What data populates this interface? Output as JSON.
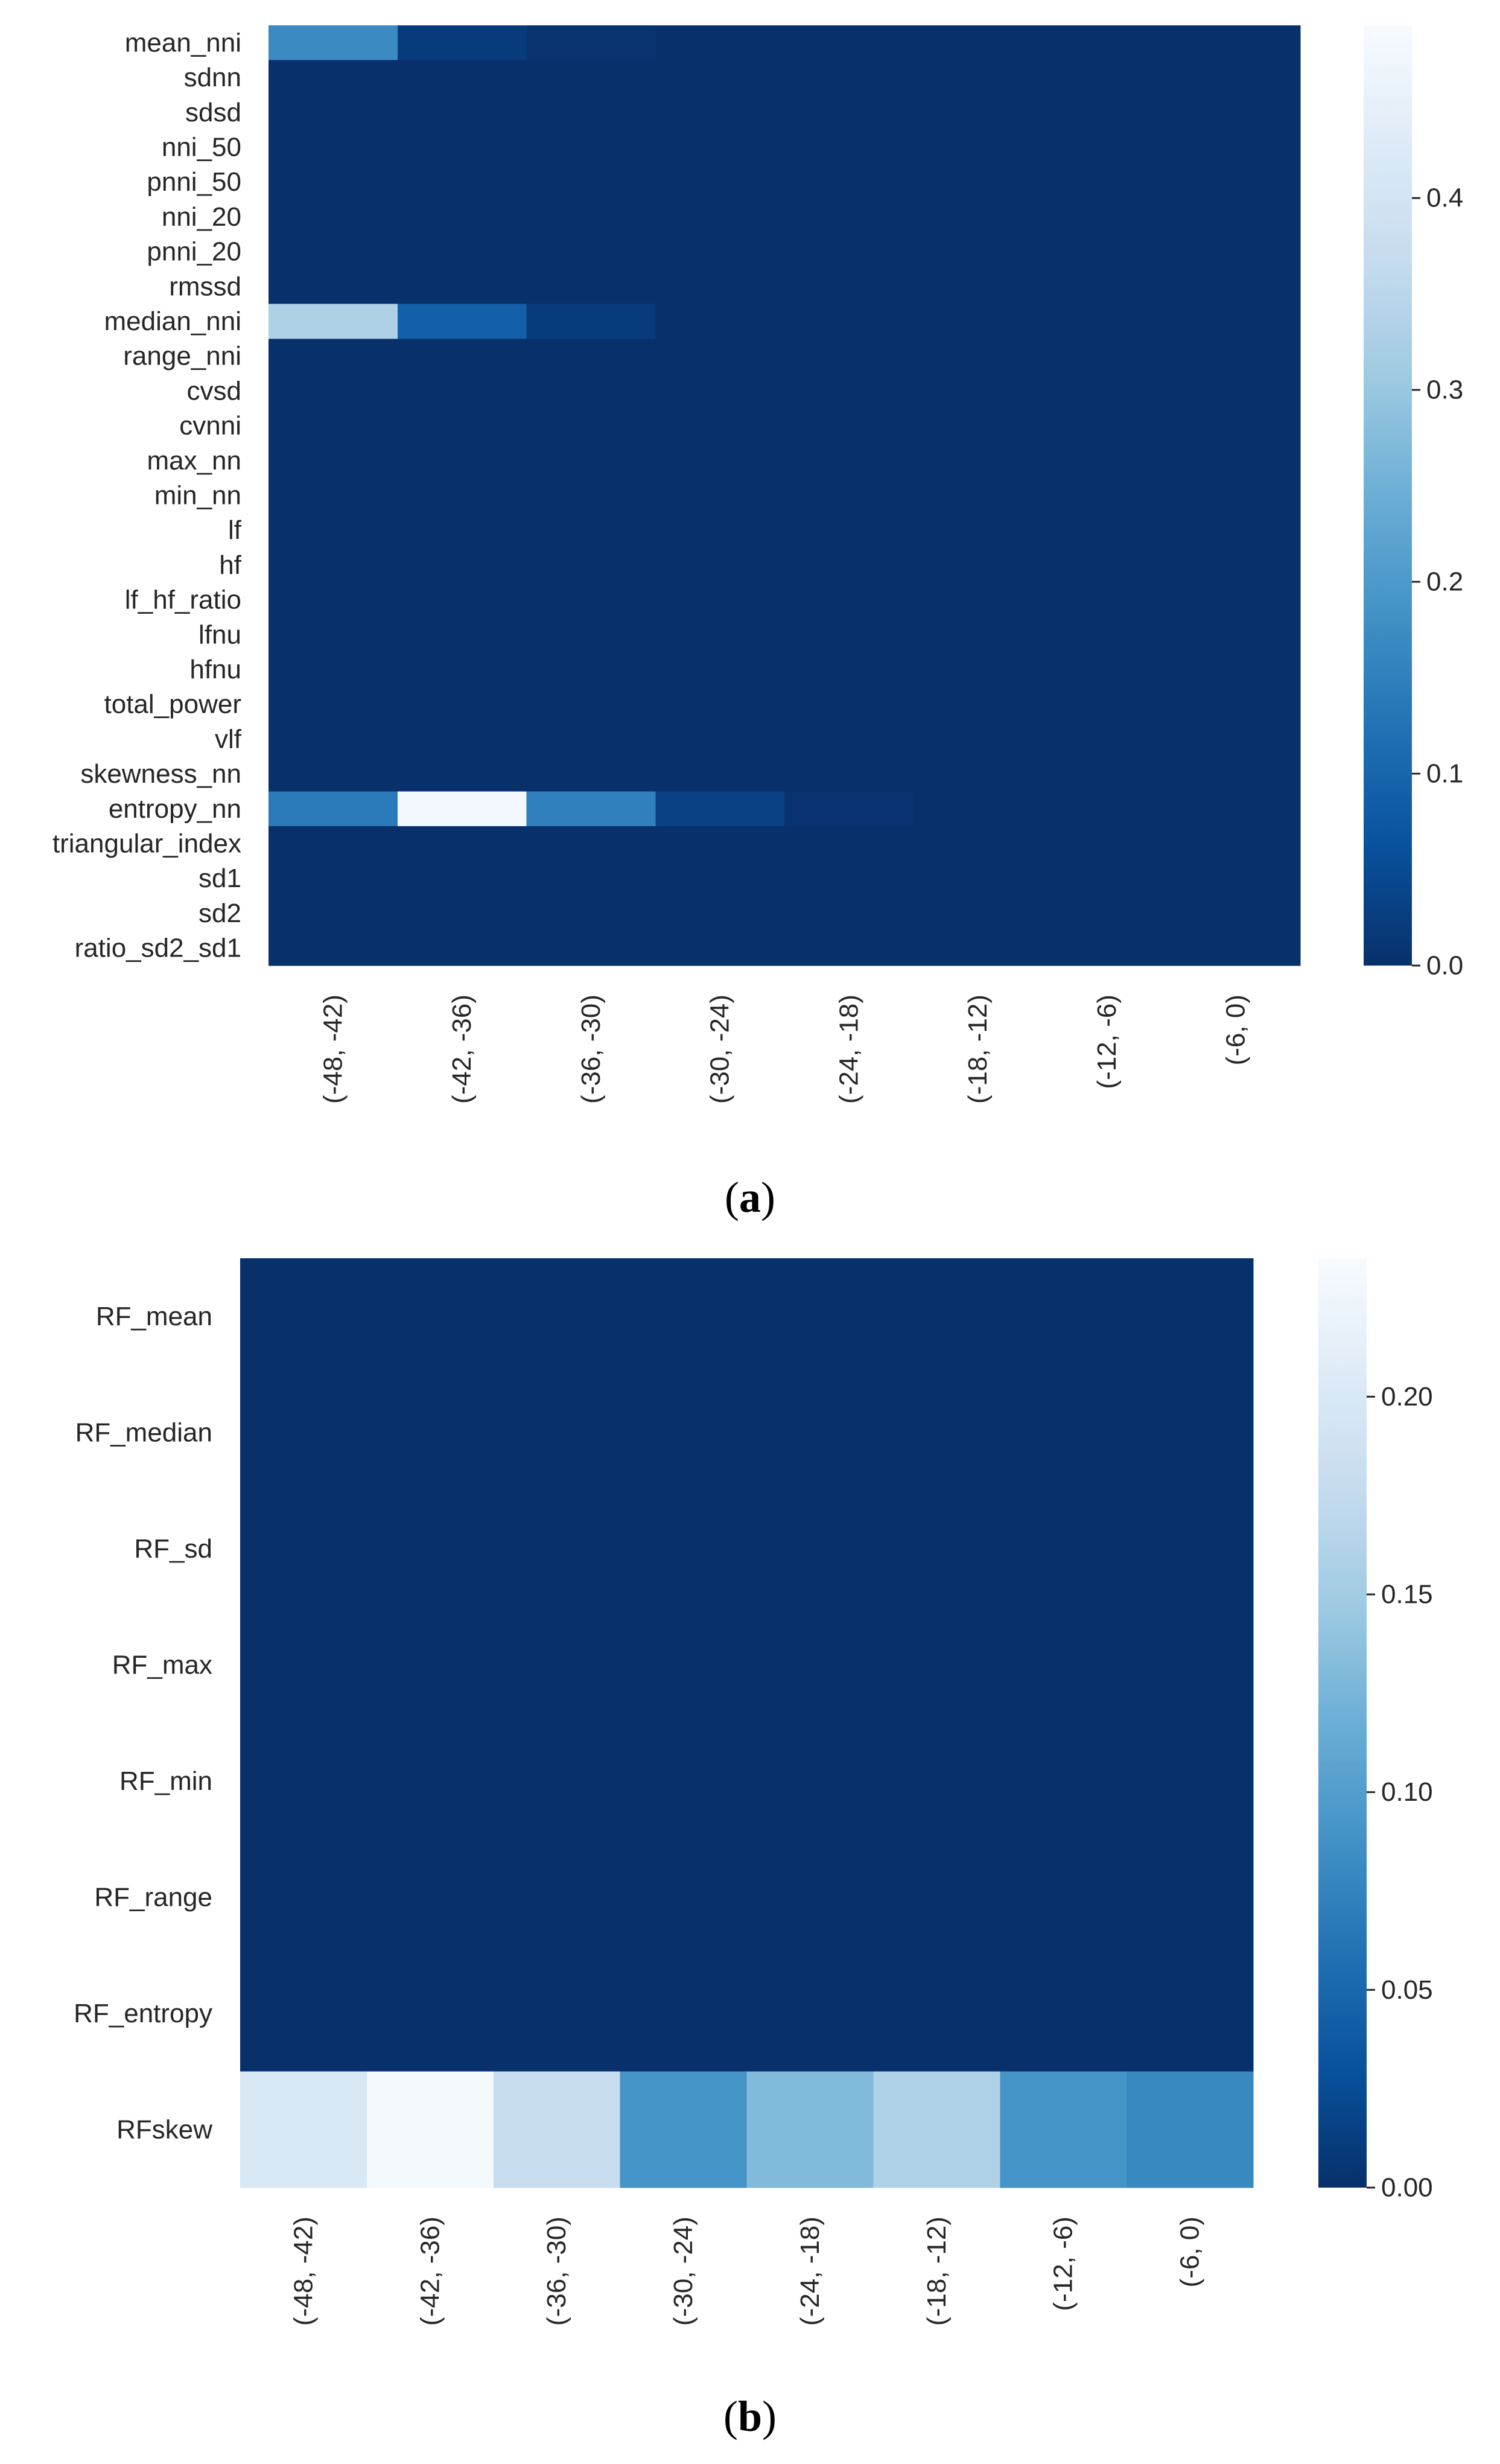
{
  "chart_data": [
    {
      "type": "heatmap",
      "panel_label": "a",
      "colormap": "Blues_r",
      "color_range": [
        0.0,
        0.49
      ],
      "rows": [
        "mean_nni",
        "sdnn",
        "sdsd",
        "nni_50",
        "pnni_50",
        "nni_20",
        "pnni_20",
        "rmssd",
        "median_nni",
        "range_nni",
        "cvsd",
        "cvnni",
        "max_nn",
        "min_nn",
        "lf",
        "hf",
        "lf_hf_ratio",
        "lfnu",
        "hfnu",
        "total_power",
        "vlf",
        "skewness_nn",
        "entropy_nn",
        "triangular_index",
        "sd1",
        "sd2",
        "ratio_sd2_sd1"
      ],
      "columns": [
        "(-48, -42)",
        "(-42, -36)",
        "(-36, -30)",
        "(-30, -24)",
        "(-24, -18)",
        "(-18, -12)",
        "(-12, -6)",
        "(-6, 0)"
      ],
      "values": [
        [
          0.17,
          0.02,
          0.005,
          0,
          0,
          0,
          0,
          0
        ],
        [
          0,
          0,
          0,
          0,
          0,
          0,
          0,
          0
        ],
        [
          0,
          0,
          0,
          0,
          0,
          0,
          0,
          0
        ],
        [
          0,
          0,
          0,
          0,
          0,
          0,
          0,
          0
        ],
        [
          0,
          0,
          0,
          0,
          0,
          0,
          0,
          0
        ],
        [
          0,
          0,
          0,
          0,
          0,
          0,
          0,
          0
        ],
        [
          0,
          0,
          0,
          0,
          0,
          0,
          0,
          0
        ],
        [
          0,
          0,
          0,
          0,
          0,
          0,
          0,
          0
        ],
        [
          0.33,
          0.09,
          0.02,
          0,
          0,
          0,
          0,
          0
        ],
        [
          0,
          0,
          0,
          0,
          0,
          0,
          0,
          0
        ],
        [
          0,
          0,
          0,
          0,
          0,
          0,
          0,
          0
        ],
        [
          0,
          0,
          0,
          0,
          0,
          0,
          0,
          0
        ],
        [
          0,
          0,
          0,
          0,
          0,
          0,
          0,
          0
        ],
        [
          0,
          0,
          0,
          0,
          0,
          0,
          0,
          0
        ],
        [
          0,
          0,
          0,
          0,
          0,
          0,
          0,
          0
        ],
        [
          0,
          0,
          0,
          0,
          0,
          0,
          0,
          0
        ],
        [
          0,
          0,
          0,
          0,
          0,
          0,
          0,
          0
        ],
        [
          0,
          0,
          0,
          0,
          0,
          0,
          0,
          0
        ],
        [
          0,
          0,
          0,
          0,
          0,
          0,
          0,
          0
        ],
        [
          0,
          0,
          0,
          0,
          0,
          0,
          0,
          0
        ],
        [
          0,
          0,
          0,
          0,
          0,
          0,
          0,
          0
        ],
        [
          0,
          0,
          0,
          0,
          0,
          0,
          0,
          0
        ],
        [
          0.14,
          0.48,
          0.15,
          0.03,
          0.006,
          0,
          0,
          0
        ],
        [
          0,
          0,
          0,
          0,
          0,
          0,
          0,
          0
        ],
        [
          0,
          0,
          0,
          0,
          0,
          0,
          0,
          0
        ],
        [
          0,
          0,
          0,
          0,
          0,
          0,
          0,
          0
        ],
        [
          0,
          0,
          0,
          0,
          0,
          0,
          0,
          0
        ]
      ],
      "colorbar_ticks": [
        0.0,
        0.1,
        0.2,
        0.3,
        0.4
      ],
      "colorbar_tick_labels": [
        "0.0",
        "0.1",
        "0.2",
        "0.3",
        "0.4"
      ]
    },
    {
      "type": "heatmap",
      "panel_label": "b",
      "colormap": "Blues_r",
      "color_range": [
        0.0,
        0.235
      ],
      "rows": [
        "RF_mean",
        "RF_median",
        "RF_sd",
        "RF_max",
        "RF_min",
        "RF_range",
        "RF_entropy",
        "RFskew"
      ],
      "columns": [
        "(-48, -42)",
        "(-42, -36)",
        "(-36, -30)",
        "(-30, -24)",
        "(-24, -18)",
        "(-18, -12)",
        "(-12, -6)",
        "(-6, 0)"
      ],
      "values": [
        [
          0,
          0,
          0,
          0,
          0,
          0,
          0,
          0
        ],
        [
          0,
          0,
          0,
          0,
          0,
          0,
          0,
          0
        ],
        [
          0,
          0,
          0,
          0,
          0,
          0,
          0,
          0
        ],
        [
          0,
          0,
          0,
          0,
          0,
          0,
          0,
          0
        ],
        [
          0,
          0,
          0,
          0,
          0,
          0,
          0,
          0
        ],
        [
          0,
          0,
          0,
          0,
          0,
          0,
          0,
          0
        ],
        [
          0,
          0,
          0,
          0,
          0,
          0,
          0,
          0
        ],
        [
          0.2,
          0.232,
          0.18,
          0.09,
          0.13,
          0.16,
          0.09,
          0.08
        ]
      ],
      "colorbar_ticks": [
        0.0,
        0.05,
        0.1,
        0.15,
        0.2
      ],
      "colorbar_tick_labels": [
        "0.00",
        "0.05",
        "0.10",
        "0.15",
        "0.20"
      ]
    }
  ],
  "captions": {
    "a_open": "(",
    "a_letter": "a",
    "a_close": ")",
    "b_open": "(",
    "b_letter": "b",
    "b_close": ")"
  }
}
